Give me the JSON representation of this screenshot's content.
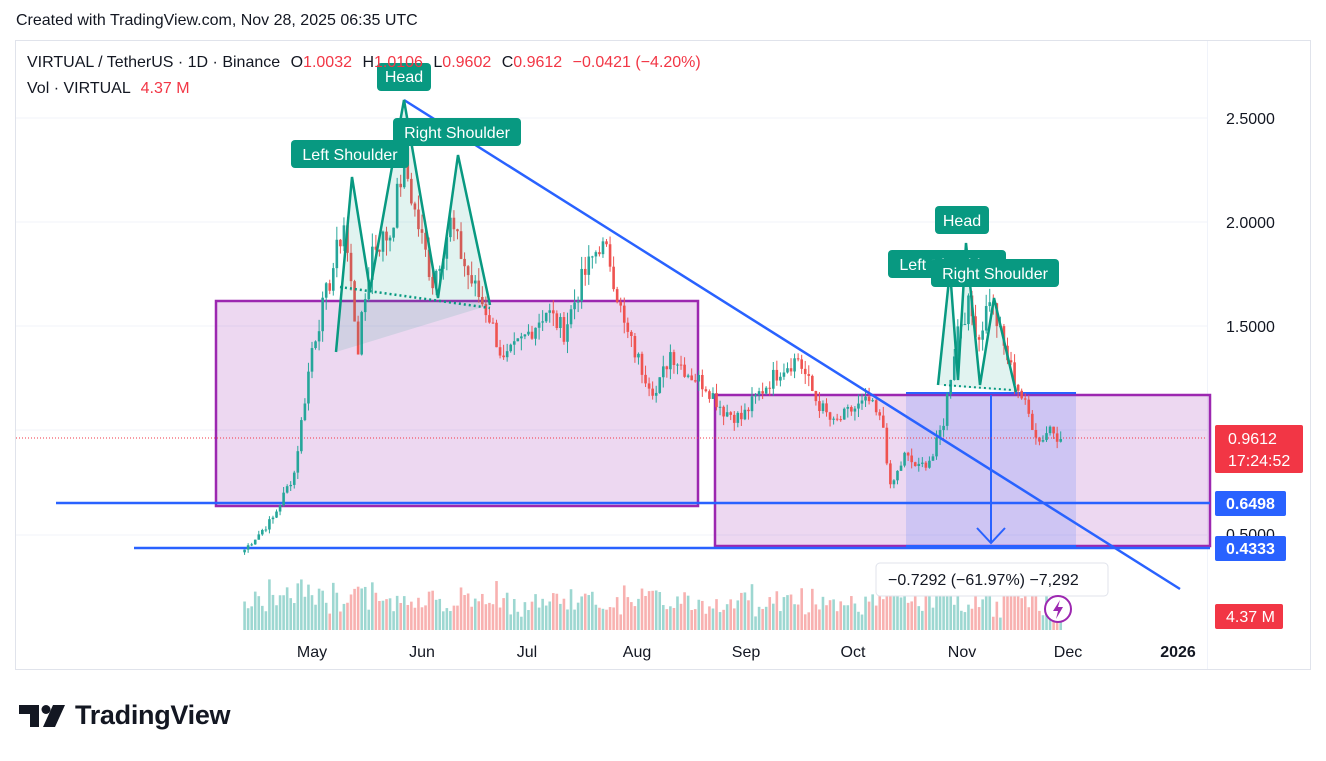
{
  "header": {
    "created_with": "Created with TradingView.com, Nov 28, 2025 06:35 UTC"
  },
  "legend": {
    "symbol": "VIRTUAL / TetherUS · 1D · Binance",
    "o_label": "O",
    "o_value": "1.0032",
    "h_label": "H",
    "h_value": "1.0106",
    "l_label": "L",
    "l_value": "0.9602",
    "c_label": "C",
    "c_value": "0.9612",
    "change": "−0.0421 (−4.20%)",
    "vol_label": "Vol · VIRTUAL",
    "vol_value": "4.37 M"
  },
  "brand": {
    "name": "TradingView"
  },
  "colors": {
    "up": "#26a69a",
    "down": "#ef5350",
    "blue": "#2962ff",
    "purple": "#9c27b0",
    "pattern": "#089981",
    "price_tag": "#f23645"
  },
  "chart_data": {
    "type": "candlestick",
    "title": "VIRTUAL / TetherUS · 1D · Binance",
    "x_ticks": [
      "May",
      "Jun",
      "Jul",
      "Aug",
      "Sep",
      "Oct",
      "Nov",
      "Dec",
      "2026"
    ],
    "y_ticks": [
      "2.5000",
      "2.0000",
      "1.5000",
      "0.5000"
    ],
    "ylim": [
      0.2,
      2.5
    ],
    "price_tags": [
      {
        "id": "last",
        "value": "0.9612",
        "countdown": "17:24:52",
        "price": 0.9612
      },
      {
        "id": "support_upper",
        "value": "0.6498",
        "price": 0.6498
      },
      {
        "id": "support_lower",
        "value": "0.4333",
        "price": 0.4333
      },
      {
        "id": "volume",
        "value": "4.37 M"
      }
    ],
    "series": [
      {
        "name": "VIRTUAL",
        "close_path": [
          [
            "2025-04-12",
            0.43
          ],
          [
            "2025-04-20",
            0.58
          ],
          [
            "2025-04-26",
            0.8
          ],
          [
            "2025-05-01",
            1.4
          ],
          [
            "2025-05-06",
            1.72
          ],
          [
            "2025-05-10",
            2.0
          ],
          [
            "2025-05-14",
            1.4
          ],
          [
            "2025-05-18",
            1.88
          ],
          [
            "2025-05-23",
            1.95
          ],
          [
            "2025-05-27",
            2.3
          ],
          [
            "2025-05-30",
            2.05
          ],
          [
            "2025-06-04",
            1.72
          ],
          [
            "2025-06-09",
            2.0
          ],
          [
            "2025-06-14",
            1.75
          ],
          [
            "2025-06-20",
            1.55
          ],
          [
            "2025-06-24",
            1.33
          ],
          [
            "2025-06-30",
            1.45
          ],
          [
            "2025-07-06",
            1.58
          ],
          [
            "2025-07-11",
            1.48
          ],
          [
            "2025-07-16",
            1.72
          ],
          [
            "2025-07-21",
            1.9
          ],
          [
            "2025-07-24",
            1.82
          ],
          [
            "2025-07-28",
            1.5
          ],
          [
            "2025-08-02",
            1.3
          ],
          [
            "2025-08-06",
            1.18
          ],
          [
            "2025-08-10",
            1.38
          ],
          [
            "2025-08-15",
            1.28
          ],
          [
            "2025-08-20",
            1.22
          ],
          [
            "2025-08-25",
            1.1
          ],
          [
            "2025-08-30",
            1.06
          ],
          [
            "2025-09-04",
            1.18
          ],
          [
            "2025-09-10",
            1.3
          ],
          [
            "2025-09-15",
            1.35
          ],
          [
            "2025-09-20",
            1.15
          ],
          [
            "2025-09-25",
            1.03
          ],
          [
            "2025-09-30",
            1.1
          ],
          [
            "2025-10-05",
            1.14
          ],
          [
            "2025-10-09",
            1.02
          ],
          [
            "2025-10-11",
            0.72
          ],
          [
            "2025-10-15",
            0.88
          ],
          [
            "2025-10-19",
            0.82
          ],
          [
            "2025-10-23",
            0.88
          ],
          [
            "2025-10-26",
            1.05
          ],
          [
            "2025-10-30",
            1.5
          ],
          [
            "2025-11-02",
            1.6
          ],
          [
            "2025-11-05",
            1.45
          ],
          [
            "2025-11-08",
            1.65
          ],
          [
            "2025-11-12",
            1.4
          ],
          [
            "2025-11-15",
            1.25
          ],
          [
            "2025-11-18",
            1.12
          ],
          [
            "2025-11-22",
            0.95
          ],
          [
            "2025-11-25",
            1.02
          ],
          [
            "2025-11-28",
            0.9612
          ]
        ]
      }
    ],
    "annotations": [
      {
        "type": "pattern",
        "labels": [
          "Left Shoulder",
          "Head",
          "Right Shoulder"
        ]
      },
      {
        "type": "pattern",
        "labels": [
          "Left Shoulder",
          "Head",
          "Right Shoulder"
        ]
      },
      {
        "type": "measure",
        "text": "−0.7292 (−61.97%) −7,292"
      }
    ],
    "zones": [
      {
        "name": "range-box-left",
        "top": 1.62,
        "bottom": 0.65
      },
      {
        "name": "range-box-right",
        "top": 1.16,
        "bottom": 0.43
      }
    ],
    "trendline": {
      "from": [
        "2025-05-28",
        2.55
      ],
      "to": [
        "2026-01-05",
        0.35
      ]
    }
  }
}
